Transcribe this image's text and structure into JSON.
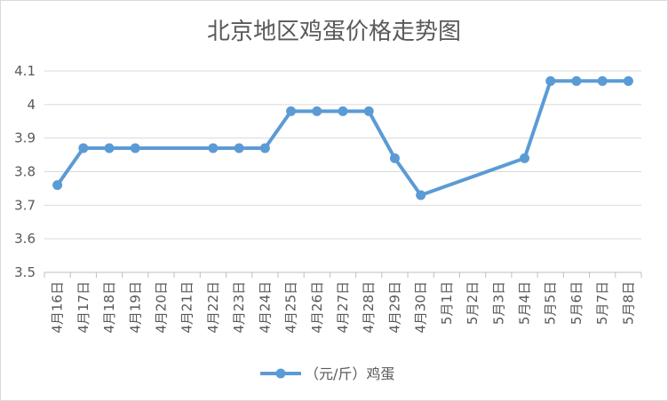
{
  "chart_data": {
    "type": "line",
    "title": "北京地区鸡蛋价格走势图",
    "xlabel": "",
    "ylabel": "",
    "ylim": [
      3.5,
      4.1
    ],
    "yticks": [
      "3.5",
      "3.6",
      "3.7",
      "3.8",
      "3.9",
      "4",
      "4.1"
    ],
    "categories": [
      "4月16日",
      "4月17日",
      "4月18日",
      "4月19日",
      "4月20日",
      "4月21日",
      "4月22日",
      "4月23日",
      "4月24日",
      "4月25日",
      "4月26日",
      "4月27日",
      "4月28日",
      "4月29日",
      "4月30日",
      "5月1日",
      "5月2日",
      "5月3日",
      "5月4日",
      "5月5日",
      "5月6日",
      "5月7日",
      "5月8日"
    ],
    "series": [
      {
        "name": "（元/斤）鸡蛋",
        "color": "#5b9bd5",
        "values": [
          3.76,
          3.87,
          3.87,
          3.87,
          null,
          null,
          3.87,
          3.87,
          3.87,
          3.98,
          3.98,
          3.98,
          3.98,
          3.84,
          3.73,
          null,
          null,
          null,
          3.84,
          4.07,
          4.07,
          4.07,
          4.07
        ]
      }
    ],
    "grid": true,
    "legend": "bottom"
  }
}
